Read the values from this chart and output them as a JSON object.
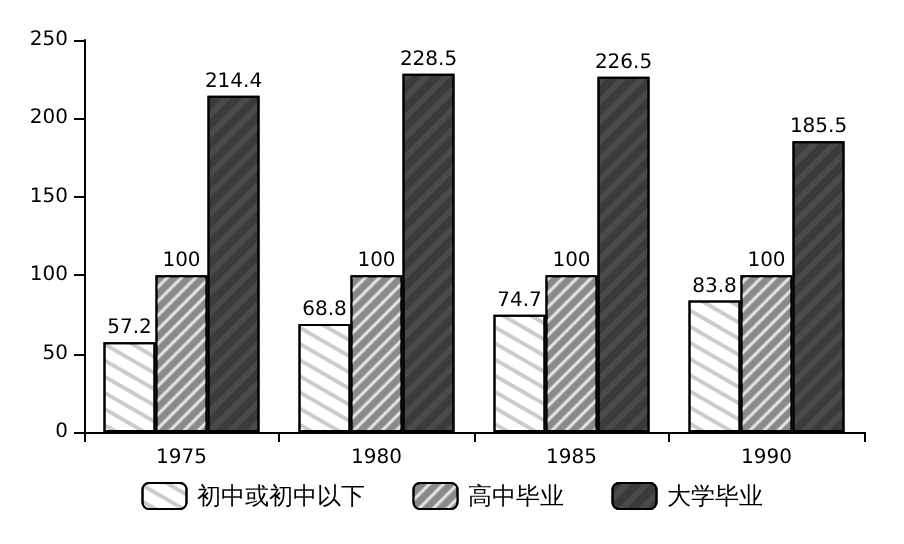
{
  "chart_data": {
    "type": "bar",
    "categories": [
      "1975",
      "1980",
      "1985",
      "1990"
    ],
    "series": [
      {
        "name": "初中或初中以下",
        "color": "#ffffff",
        "values": [
          57.2,
          68.8,
          74.7,
          83.8
        ]
      },
      {
        "name": "高中毕业",
        "color": "#8a8a8a",
        "values": [
          100,
          100,
          100,
          100
        ]
      },
      {
        "name": "大学毕业",
        "color": "#4a4a4a",
        "values": [
          214.4,
          228.5,
          226.5,
          185.5
        ]
      }
    ],
    "ylim": [
      0,
      250
    ],
    "yticks": [
      0,
      50,
      100,
      150,
      200,
      250
    ],
    "data_labels": true,
    "legend": "bottom",
    "grid": false
  }
}
